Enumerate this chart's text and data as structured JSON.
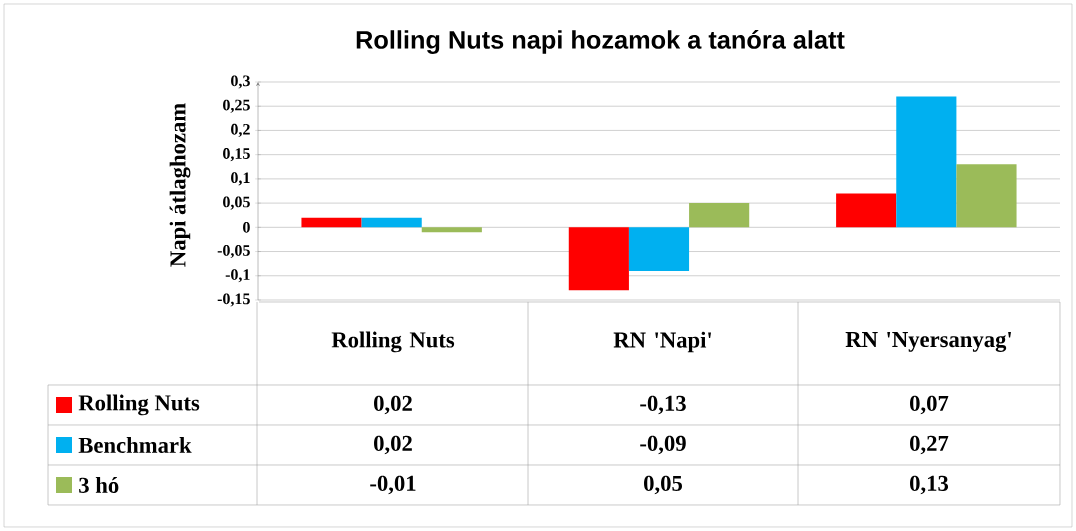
{
  "chart_data": {
    "type": "bar",
    "title": "Rolling Nuts napi hozamok a tanóra alatt",
    "ylabel": "Napi átlaghozam",
    "categories": [
      "Rolling Nuts",
      "RN 'Napi'",
      "RN 'Nyersanyag'"
    ],
    "series": [
      {
        "name": "Rolling Nuts",
        "color": "#ff0000",
        "values": [
          0.02,
          -0.13,
          0.07
        ],
        "value_labels": [
          "0,02",
          "-0,13",
          "0,07"
        ]
      },
      {
        "name": "Benchmark",
        "color": "#00b0f0",
        "values": [
          0.02,
          -0.09,
          0.27
        ],
        "value_labels": [
          "0,02",
          "-0,09",
          "0,27"
        ]
      },
      {
        "name": "3 hó",
        "color": "#9bbb59",
        "values": [
          -0.01,
          0.05,
          0.13
        ],
        "value_labels": [
          "-0,01",
          "0,05",
          "0,13"
        ]
      }
    ],
    "ylim": [
      -0.15,
      0.3
    ],
    "yticks": [
      {
        "value": -0.15,
        "label": "-0,15"
      },
      {
        "value": -0.1,
        "label": "-0,1"
      },
      {
        "value": -0.05,
        "label": "-0,05"
      },
      0,
      {
        "value": 0.05,
        "label": "0,05"
      },
      {
        "value": 0.1,
        "label": "0,1"
      },
      {
        "value": 0.15,
        "label": "0,15"
      },
      {
        "value": 0.2,
        "label": "0,2"
      },
      {
        "value": 0.25,
        "label": "0,25"
      },
      {
        "value": 0.3,
        "label": "0,3"
      }
    ],
    "grid": "y",
    "legend": "bottom"
  }
}
